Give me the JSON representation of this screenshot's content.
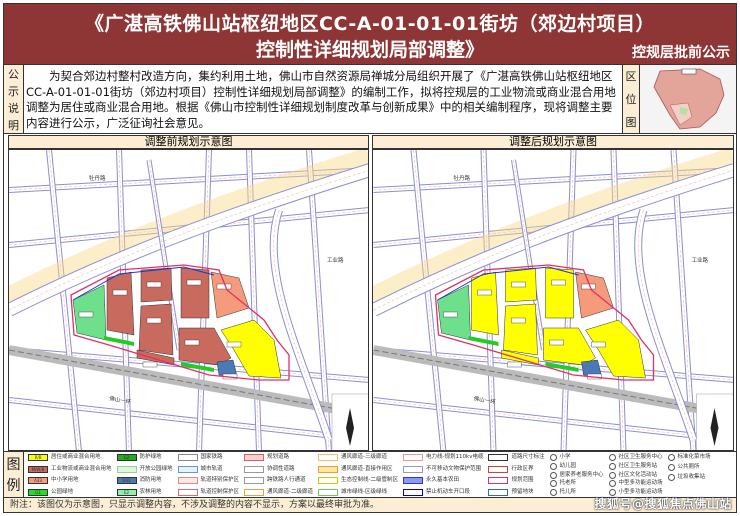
{
  "header": {
    "title_line1": "《广湛高铁佛山站枢纽地区CC-A-01-01-01街坊（郊边村项目）",
    "title_line2": "控制性详细规划局部调整》",
    "stage": "控规层批前公示"
  },
  "info": {
    "side_label": [
      "公",
      "示",
      "说",
      "明"
    ],
    "description": "为契合郊边村整村改造方向，集约利用土地，佛山市自然资源局禅城分局组织开展了《广湛高铁佛山站枢纽地区CC-A-01-01-01街坊（郊边村项目）控制性详细规划局部调整》的编制工作，拟将控规层的工业物流或商业混合用地调整为居住或商业混合用地。根据《佛山市控制性详细规划制度改革与创新成果》中的相关编制程序，现将调整主要内容进行公示，广泛征询社会意见。",
    "location_label": [
      "区",
      "位",
      "图"
    ]
  },
  "panels": [
    {
      "title": "调整前规划示意图",
      "parcel_uses": [
        "green-hatch",
        "industrial",
        "industrial",
        "industrial",
        "industrial",
        "industrial",
        "industrial",
        "school",
        "residential",
        "utility"
      ]
    },
    {
      "title": "调整后规划示意图",
      "parcel_uses": [
        "green-hatch",
        "residential",
        "residential",
        "residential",
        "residential",
        "residential",
        "residential",
        "school",
        "residential",
        "utility"
      ]
    }
  ],
  "roads": {
    "r1": "牡丹路",
    "r2": "工业路",
    "r3": "佛山一环"
  },
  "colors": {
    "residential": "#ffff00",
    "industrial": "#c86b5e",
    "school": "#f59a7a",
    "park": "#33cc33",
    "utility": "#4a7ab5",
    "header": "#8e3535",
    "note_bg": "#fbeed5"
  },
  "legend": {
    "label": [
      "图",
      "例"
    ],
    "items": [
      {
        "code": "R/B",
        "label": "居住或商业混合用地"
      },
      {
        "code": "M/W/B",
        "label": "工业物流或商业混合用地"
      },
      {
        "code": "A33",
        "label": "中小学用地"
      },
      {
        "code": "G1",
        "label": "公园绿地"
      },
      {
        "code": "G2",
        "label": "防护绿地"
      },
      {
        "code": "",
        "label": "开放公园绿地"
      },
      {
        "code": "U31",
        "label": "消防用地"
      },
      {
        "code": "E2",
        "label": "农林用地"
      },
      {
        "code": "",
        "label": "国家铁路"
      },
      {
        "code": "",
        "label": "城市轨道"
      },
      {
        "code": "",
        "label": "轨道特别保护区"
      },
      {
        "code": "",
        "label": "轨道控制保护区"
      },
      {
        "code": "",
        "label": "规划道路"
      },
      {
        "code": "",
        "label": "协调性道路"
      },
      {
        "code": "",
        "label": "跨铁路人行通道"
      },
      {
        "code": "",
        "label": "通风廊道-二级廊道"
      },
      {
        "code": "",
        "label": "通风廊道-三级廊道"
      },
      {
        "code": "",
        "label": "通风廊道-直接作用区"
      },
      {
        "code": "",
        "label": "生态控制线-二级管制区"
      },
      {
        "code": "",
        "label": "城市绿线-区级绿线"
      },
      {
        "code": "",
        "label": "电力线-规划110kv电缆"
      },
      {
        "code": "",
        "label": "不可移动文物保护范围"
      },
      {
        "code": "",
        "label": "永久基本农田"
      },
      {
        "code": "",
        "label": "禁止机动车开口段"
      },
      {
        "code": "",
        "label": "道路尺寸标注"
      },
      {
        "code": "",
        "label": "行政区界"
      },
      {
        "code": "",
        "label": "规划范围"
      },
      {
        "code": "",
        "label": "预留地块"
      },
      {
        "code": "",
        "label": "小学"
      },
      {
        "code": "",
        "label": "幼儿园"
      },
      {
        "code": "",
        "label": "居家养老服务中心"
      },
      {
        "code": "",
        "label": "托老所"
      },
      {
        "code": "",
        "label": "托儿所"
      },
      {
        "code": "",
        "label": "社区卫生服务中心"
      },
      {
        "code": "",
        "label": "社区卫生服务站"
      },
      {
        "code": "",
        "label": "社区文化活动站"
      },
      {
        "code": "",
        "label": "中型多功能运动场"
      },
      {
        "code": "",
        "label": "小型多功能运动场"
      },
      {
        "code": "",
        "label": "标准化菜市场"
      },
      {
        "code": "",
        "label": "公共厕所"
      },
      {
        "code": "",
        "label": "垃圾收集站"
      }
    ]
  },
  "note": "附注：该图仅为示意图，只显示调整内容，不涉及调整的内容不显示，方案以最终审批为准。",
  "watermark": "搜狐号@搜狐焦点佛山站"
}
